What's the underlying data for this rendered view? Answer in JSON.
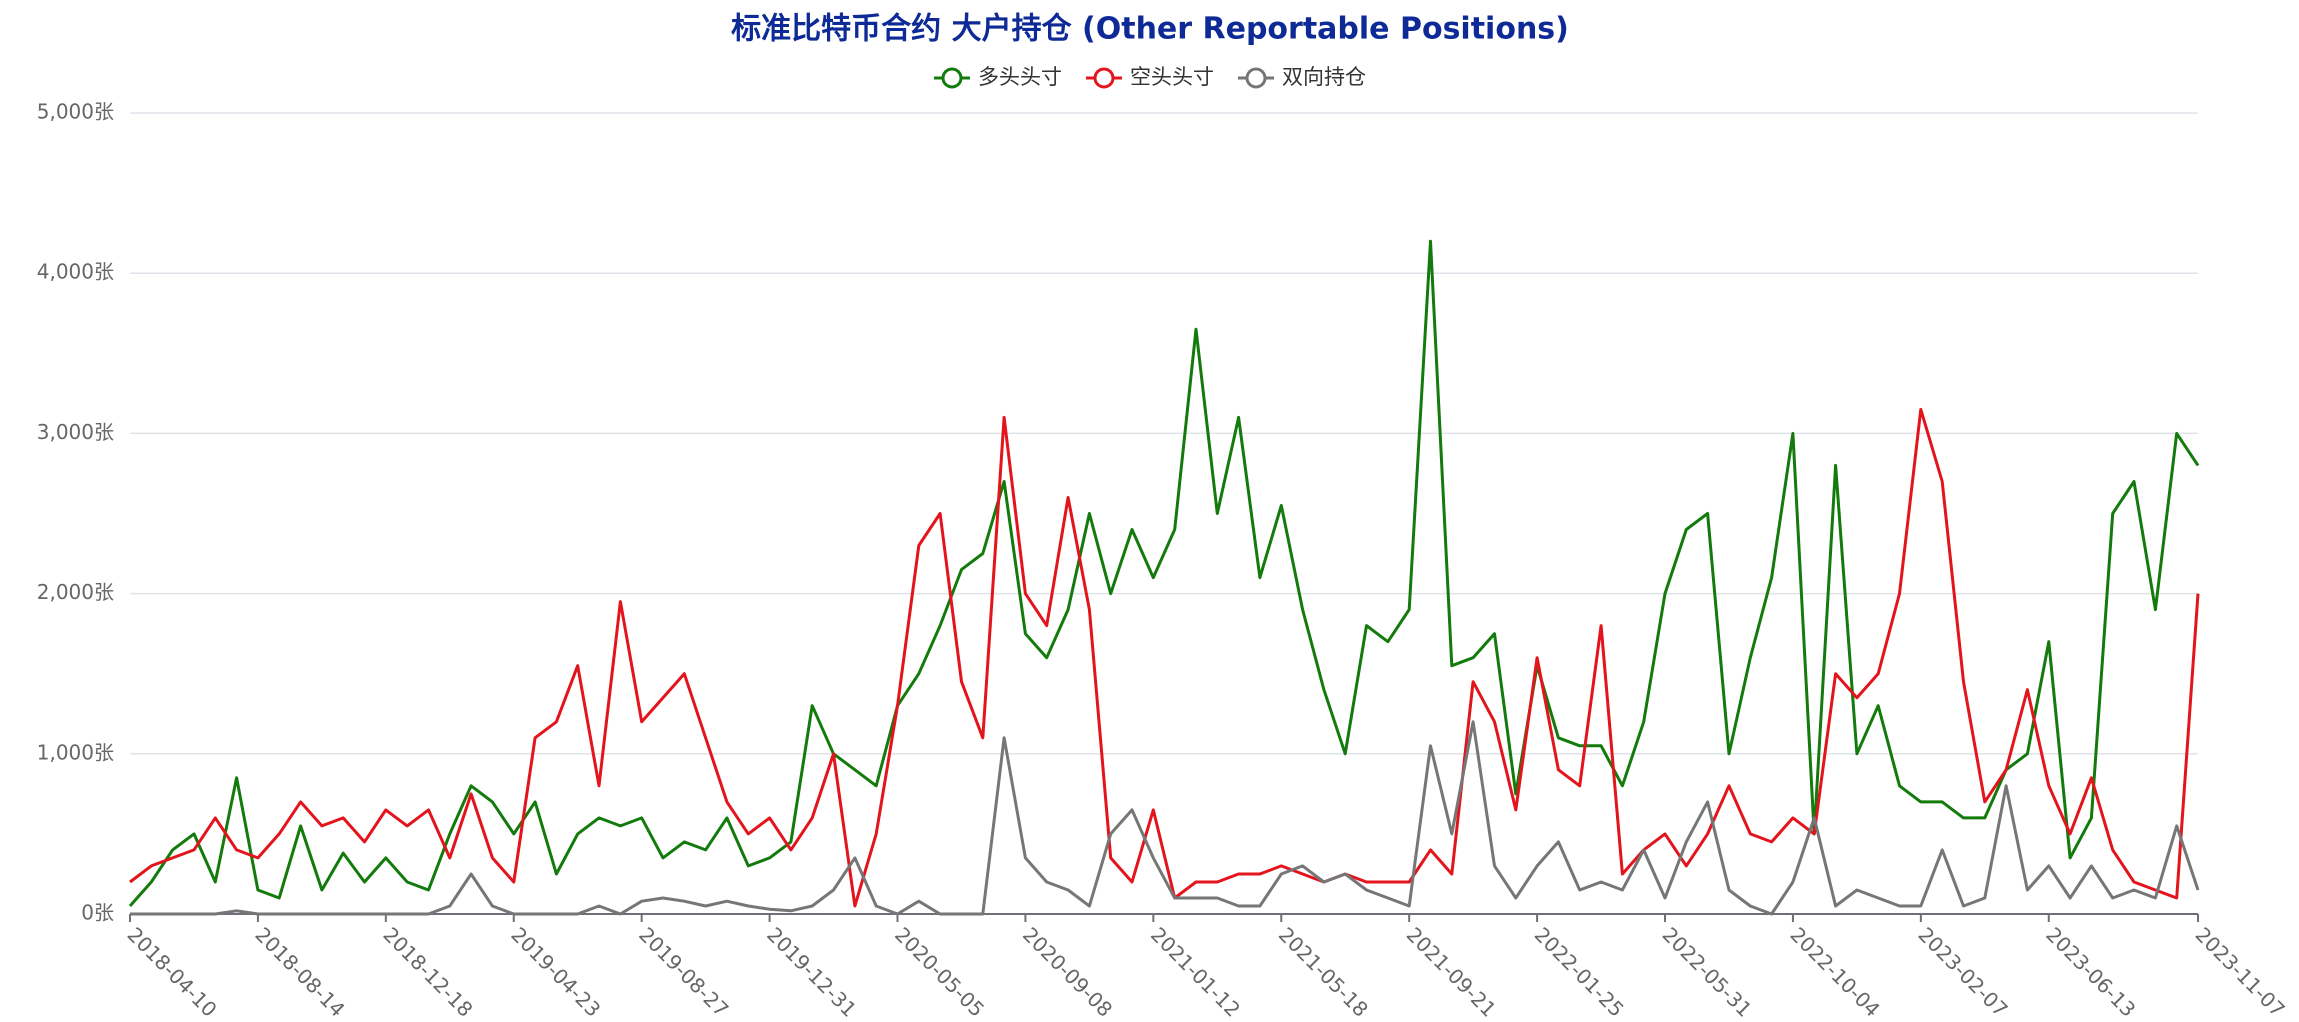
{
  "chart_data": {
    "type": "line",
    "title": "标准比特币合约 大户持仓 (Other Reportable Positions)",
    "categories": [
      "2018-04-10",
      null,
      null,
      null,
      null,
      null,
      "2018-08-14",
      null,
      null,
      null,
      null,
      null,
      "2018-12-18",
      null,
      null,
      null,
      null,
      null,
      "2019-04-23",
      null,
      null,
      null,
      null,
      null,
      "2019-08-27",
      null,
      null,
      null,
      null,
      null,
      "2019-12-31",
      null,
      null,
      null,
      null,
      null,
      "2020-05-05",
      null,
      null,
      null,
      null,
      null,
      "2020-09-08",
      null,
      null,
      null,
      null,
      null,
      "2021-01-12",
      null,
      null,
      null,
      null,
      null,
      "2021-05-18",
      null,
      null,
      null,
      null,
      null,
      "2021-09-21",
      null,
      null,
      null,
      null,
      null,
      "2022-01-25",
      null,
      null,
      null,
      null,
      null,
      "2022-05-31",
      null,
      null,
      null,
      null,
      null,
      "2022-10-04",
      null,
      null,
      null,
      null,
      null,
      "2023-02-07",
      null,
      null,
      null,
      null,
      null,
      "2023-06-13",
      null,
      null,
      null,
      null,
      null,
      null,
      "2023-11-07"
    ],
    "series": [
      {
        "name": "多头头寸",
        "color": "#137a0c",
        "values": [
          50,
          200,
          400,
          500,
          200,
          850,
          150,
          100,
          550,
          150,
          380,
          200,
          350,
          200,
          150,
          500,
          800,
          700,
          500,
          700,
          250,
          500,
          600,
          550,
          600,
          350,
          450,
          400,
          600,
          300,
          350,
          450,
          1300,
          1000,
          900,
          800,
          1300,
          1500,
          1800,
          2150,
          2250,
          2700,
          1750,
          1600,
          1900,
          2500,
          2000,
          2400,
          2100,
          2400,
          3650,
          2500,
          3100,
          2100,
          2550,
          1900,
          1400,
          1000,
          1800,
          1700,
          1900,
          4200,
          1550,
          1600,
          1750,
          750,
          1550,
          1100,
          1050,
          1050,
          800,
          1200,
          2000,
          2400,
          2500,
          1000,
          1600,
          2100,
          3000,
          500,
          2800,
          1000,
          1300,
          800,
          700,
          700,
          600,
          600,
          900,
          1000,
          1700,
          350,
          600,
          2500,
          2700,
          1900,
          3000,
          2800
        ]
      },
      {
        "name": "空头头寸",
        "color": "#e3141c",
        "values": [
          200,
          300,
          350,
          400,
          600,
          400,
          350,
          500,
          700,
          550,
          600,
          450,
          650,
          550,
          650,
          350,
          750,
          350,
          200,
          1100,
          1200,
          1550,
          800,
          1950,
          1200,
          1350,
          1500,
          1100,
          700,
          500,
          600,
          400,
          600,
          1000,
          50,
          500,
          1300,
          2300,
          2500,
          1450,
          1100,
          3100,
          2000,
          1800,
          2600,
          1900,
          350,
          200,
          650,
          100,
          200,
          200,
          250,
          250,
          300,
          250,
          200,
          250,
          200,
          200,
          200,
          400,
          250,
          1450,
          1200,
          650,
          1600,
          900,
          800,
          1800,
          250,
          400,
          500,
          300,
          500,
          800,
          500,
          450,
          600,
          500,
          1500,
          1350,
          1500,
          2000,
          3150,
          2700,
          1450,
          700,
          900,
          1400,
          800,
          500,
          850,
          400,
          200,
          150,
          100,
          2000
        ]
      },
      {
        "name": "双向持仓",
        "color": "#767676",
        "values": [
          0,
          0,
          0,
          0,
          0,
          20,
          0,
          0,
          0,
          0,
          0,
          0,
          0,
          0,
          0,
          50,
          250,
          50,
          0,
          0,
          0,
          0,
          50,
          0,
          80,
          100,
          80,
          50,
          80,
          50,
          30,
          20,
          50,
          150,
          350,
          50,
          0,
          80,
          0,
          0,
          0,
          1100,
          350,
          200,
          150,
          50,
          500,
          650,
          350,
          100,
          100,
          100,
          50,
          50,
          250,
          300,
          200,
          250,
          150,
          100,
          50,
          1050,
          500,
          1200,
          300,
          100,
          300,
          450,
          150,
          200,
          150,
          400,
          100,
          450,
          700,
          150,
          50,
          0,
          200,
          600,
          50,
          150,
          100,
          50,
          50,
          400,
          50,
          100,
          800,
          150,
          300,
          100,
          300,
          100,
          150,
          100,
          550,
          150
        ]
      }
    ],
    "ylim": [
      0,
      5000
    ],
    "yticks": [
      {
        "value": 0,
        "label": "0张"
      },
      {
        "value": 1000,
        "label": "1,000张"
      },
      {
        "value": 2000,
        "label": "2,000张"
      },
      {
        "value": 3000,
        "label": "3,000张"
      },
      {
        "value": 4000,
        "label": "4,000张"
      },
      {
        "value": 5000,
        "label": "5,000张"
      }
    ],
    "grid": true
  }
}
